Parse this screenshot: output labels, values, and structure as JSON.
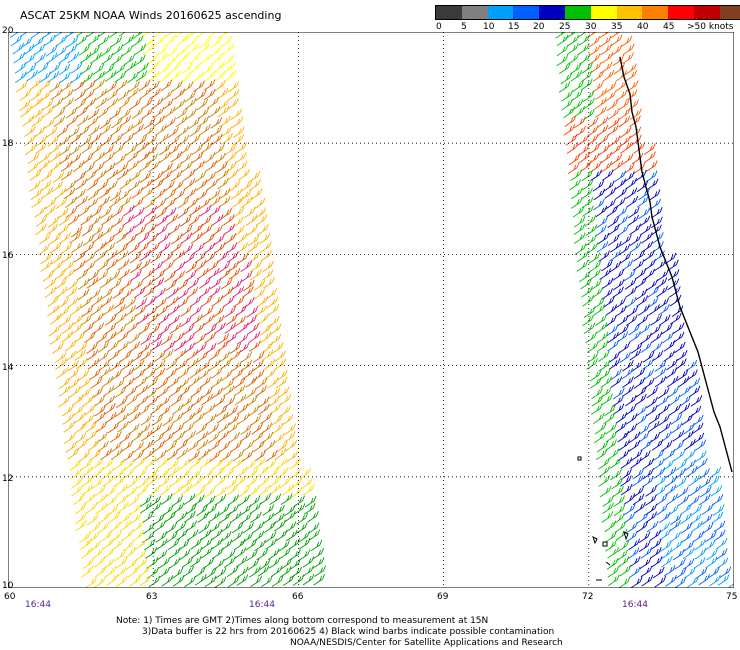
{
  "title": "ASCAT 25KM NOAA Winds 20160625 ascending",
  "legend": {
    "labels": [
      "0",
      "5",
      "10",
      "15",
      "20",
      "25",
      "30",
      "35",
      "40",
      "45",
      ">50 knots"
    ],
    "colors": [
      "#3a3a3a",
      "#808080",
      "#00a0ff",
      "#0060ff",
      "#0000c0",
      "#00c000",
      "#ffff00",
      "#ffc000",
      "#ff8000",
      "#ff0000",
      "#c00000",
      "#804020",
      "#ff00ff",
      "#c000ff",
      "#5000a0",
      "#8000a0",
      "#a000c0",
      "#6000c0",
      "#7000a0",
      "#500080"
    ]
  },
  "map": {
    "lat_labels": [
      "20",
      "18",
      "16",
      "14",
      "12",
      "10"
    ],
    "lon_labels": [
      "60",
      "63",
      "66",
      "69",
      "72",
      "75"
    ],
    "lat_range": [
      10,
      20
    ],
    "lon_range": [
      60,
      75
    ],
    "times": [
      "16:44",
      "16:44",
      "16:44"
    ]
  },
  "notes": {
    "line1": "Note: 1) Times are GMT 2)Times along bottom correspond to measurement at 15N",
    "line2": "3)Data buffer is 22 hrs from 20160625 4) Black wind barbs indicate possible contamination",
    "line3": "NOAA/NESDIS/Center for Satellite Applications and Research"
  }
}
